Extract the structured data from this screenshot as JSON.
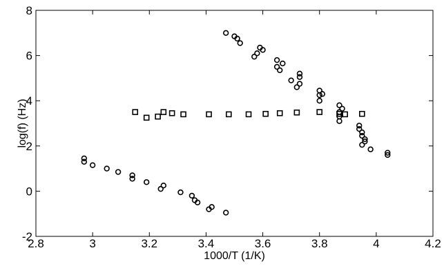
{
  "chart_data": {
    "type": "scatter",
    "title": "",
    "xlabel": "1000/T (1/K)",
    "ylabel": "log(f) (Hz)",
    "xlim": [
      2.8,
      4.2
    ],
    "ylim": [
      -2,
      8
    ],
    "x_ticks": [
      2.8,
      3.0,
      3.2,
      3.4,
      3.6,
      3.8,
      4.0,
      4.2
    ],
    "x_tick_labels": [
      "2.8",
      "3",
      "3.2",
      "3.4",
      "3.6",
      "3.8",
      "4",
      "4.2"
    ],
    "y_ticks": [
      -2,
      0,
      2,
      4,
      6,
      8
    ],
    "y_tick_labels": [
      "-2",
      "0",
      "2",
      "4",
      "6",
      "8"
    ],
    "grid": false,
    "legend": "none",
    "series": [
      {
        "marker": "circle",
        "color": "#000000",
        "points": [
          [
            3.47,
            7.0
          ],
          [
            3.5,
            6.85
          ],
          [
            3.51,
            6.75
          ],
          [
            3.52,
            6.55
          ],
          [
            3.57,
            5.95
          ],
          [
            3.58,
            6.1
          ],
          [
            3.59,
            6.35
          ],
          [
            3.6,
            6.25
          ],
          [
            3.65,
            5.8
          ],
          [
            3.65,
            5.5
          ],
          [
            3.66,
            5.35
          ],
          [
            3.67,
            5.65
          ],
          [
            3.7,
            4.9
          ],
          [
            3.72,
            4.6
          ],
          [
            3.73,
            4.75
          ],
          [
            3.73,
            5.05
          ],
          [
            3.73,
            5.2
          ],
          [
            3.8,
            4.45
          ],
          [
            3.8,
            4.25
          ],
          [
            3.8,
            4.0
          ],
          [
            3.81,
            4.3
          ],
          [
            3.87,
            3.8
          ],
          [
            3.87,
            3.5
          ],
          [
            3.87,
            3.3
          ],
          [
            3.87,
            3.1
          ],
          [
            3.88,
            3.65
          ],
          [
            3.94,
            2.9
          ],
          [
            3.94,
            2.75
          ],
          [
            3.95,
            2.6
          ],
          [
            3.95,
            2.45
          ],
          [
            3.95,
            2.05
          ],
          [
            3.96,
            2.2
          ],
          [
            3.96,
            2.3
          ],
          [
            3.98,
            1.85
          ],
          [
            4.04,
            1.7
          ],
          [
            4.04,
            1.6
          ]
        ]
      },
      {
        "marker": "square",
        "color": "#000000",
        "points": [
          [
            3.15,
            3.5
          ],
          [
            3.19,
            3.25
          ],
          [
            3.23,
            3.3
          ],
          [
            3.25,
            3.5
          ],
          [
            3.28,
            3.45
          ],
          [
            3.32,
            3.4
          ],
          [
            3.41,
            3.4
          ],
          [
            3.48,
            3.4
          ],
          [
            3.55,
            3.4
          ],
          [
            3.61,
            3.42
          ],
          [
            3.66,
            3.45
          ],
          [
            3.72,
            3.48
          ],
          [
            3.8,
            3.5
          ],
          [
            3.87,
            3.42
          ],
          [
            3.89,
            3.4
          ],
          [
            3.95,
            3.42
          ]
        ]
      },
      {
        "marker": "circle",
        "color": "#000000",
        "points": [
          [
            2.97,
            1.45
          ],
          [
            2.97,
            1.3
          ],
          [
            3.0,
            1.15
          ],
          [
            3.05,
            1.0
          ],
          [
            3.09,
            0.85
          ],
          [
            3.14,
            0.7
          ],
          [
            3.14,
            0.55
          ],
          [
            3.19,
            0.4
          ],
          [
            3.24,
            0.1
          ],
          [
            3.25,
            0.25
          ],
          [
            3.31,
            -0.05
          ],
          [
            3.35,
            -0.2
          ],
          [
            3.36,
            -0.4
          ],
          [
            3.37,
            -0.5
          ],
          [
            3.41,
            -0.8
          ],
          [
            3.42,
            -0.7
          ],
          [
            3.47,
            -0.95
          ]
        ]
      }
    ]
  }
}
